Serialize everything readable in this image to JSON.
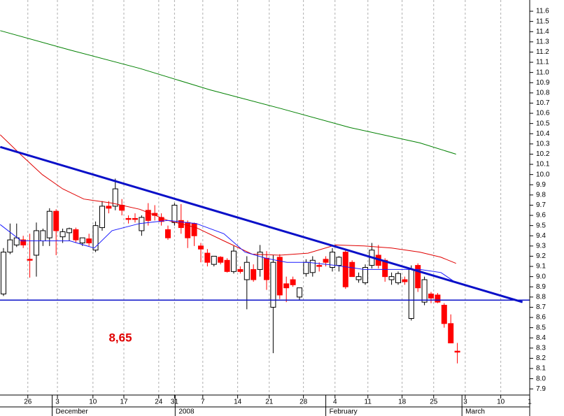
{
  "chart_data": {
    "type": "candlestick",
    "annotation": "8,65",
    "open": [
      8.83,
      9.24,
      9.31,
      9.36,
      9.17,
      9.21,
      9.35,
      9.38,
      9.64,
      9.39,
      9.43,
      9.46,
      9.33,
      9.37,
      9.26,
      9.48,
      9.69,
      9.69,
      9.7,
      9.57,
      9.57,
      9.45,
      9.65,
      9.62,
      9.58,
      9.46,
      9.53,
      9.55,
      9.53,
      9.52,
      9.3,
      9.23,
      9.12,
      9.19,
      9.16,
      9.05,
      9.07,
      8.97,
      9.07,
      9.07,
      9.18,
      8.7,
      9.19,
      8.93,
      8.97,
      8.8,
      9.03,
      9.04,
      9.11,
      9.17,
      9.09,
      9.11,
      9.24,
      9.14,
      8.97,
      8.94,
      9.11,
      9.21,
      9.16,
      8.97,
      8.94,
      8.97,
      8.59,
      9.11,
      8.75,
      8.83,
      8.82,
      8.72,
      8.54,
      8.27
    ],
    "high": [
      9.28,
      9.52,
      9.52,
      9.4,
      9.42,
      9.53,
      9.47,
      9.67,
      9.66,
      9.47,
      9.48,
      9.48,
      9.38,
      9.42,
      9.54,
      9.74,
      9.74,
      9.96,
      9.76,
      9.6,
      9.62,
      9.6,
      9.72,
      9.7,
      9.62,
      9.5,
      9.72,
      9.71,
      9.55,
      9.53,
      9.33,
      9.27,
      9.2,
      9.2,
      9.18,
      9.3,
      9.1,
      9.2,
      9.12,
      9.31,
      9.25,
      9.21,
      9.22,
      9.0,
      9.0,
      8.88,
      9.17,
      9.2,
      9.14,
      9.2,
      9.28,
      9.2,
      9.27,
      9.16,
      9.04,
      9.12,
      9.33,
      9.31,
      9.18,
      9.04,
      9.05,
      9.0,
      9.11,
      9.13,
      9.0,
      8.85,
      8.84,
      8.74,
      8.63,
      8.35
    ],
    "low": [
      8.81,
      9.22,
      9.29,
      9.28,
      8.99,
      9.0,
      9.3,
      9.3,
      9.21,
      9.33,
      9.35,
      9.33,
      9.3,
      9.3,
      9.24,
      9.45,
      9.62,
      9.65,
      9.6,
      9.52,
      9.53,
      9.4,
      9.5,
      9.55,
      9.5,
      9.36,
      9.5,
      9.42,
      9.28,
      9.3,
      9.14,
      9.1,
      9.1,
      9.12,
      9.04,
      9.03,
      9.03,
      8.68,
      8.95,
      9.0,
      8.87,
      8.25,
      8.78,
      8.75,
      8.9,
      8.77,
      9.0,
      9.0,
      9.05,
      9.1,
      9.05,
      9.05,
      8.88,
      9.0,
      8.94,
      8.92,
      9.08,
      9.08,
      8.95,
      8.92,
      8.92,
      8.92,
      8.57,
      8.85,
      8.72,
      8.74,
      8.74,
      8.5,
      8.35,
      8.15
    ],
    "close": [
      9.24,
      9.36,
      9.38,
      9.31,
      9.16,
      9.45,
      9.45,
      9.64,
      9.45,
      9.44,
      9.47,
      9.36,
      9.38,
      9.33,
      9.5,
      9.69,
      9.67,
      9.86,
      9.65,
      9.56,
      9.56,
      9.58,
      9.55,
      9.6,
      9.54,
      9.38,
      9.7,
      9.48,
      9.38,
      9.4,
      9.27,
      9.14,
      9.2,
      9.14,
      9.05,
      9.25,
      9.05,
      9.14,
      8.97,
      9.24,
      8.97,
      9.14,
      8.82,
      8.89,
      8.92,
      8.89,
      9.14,
      9.16,
      9.1,
      9.14,
      9.24,
      9.19,
      8.9,
      9.0,
      9.0,
      9.09,
      9.26,
      9.11,
      9.0,
      9.0,
      9.03,
      8.95,
      9.07,
      8.89,
      8.97,
      8.79,
      8.75,
      8.54,
      8.35,
      8.26
    ],
    "up_color": "#ffffff",
    "down_color": "#ff0000",
    "lines": [
      {
        "color": "#008000",
        "width": 1,
        "x": [
          -0.5,
          10.1,
          20.7,
          31.4,
          42,
          52.7,
          63.3,
          68.8
        ],
        "values": [
          11.41,
          11.22,
          11.04,
          10.83,
          10.65,
          10.46,
          10.31,
          10.2
        ]
      },
      {
        "color": "#e00000",
        "width": 1,
        "x": [
          -0.5,
          2.7,
          5.9,
          9,
          12.2,
          16.5,
          20.7,
          25,
          29.3,
          33.5,
          37.8,
          42,
          46.3,
          50.5,
          54.8,
          59,
          63.3,
          66.5,
          68.8
        ],
        "values": [
          10.39,
          10.19,
          10.0,
          9.86,
          9.76,
          9.72,
          9.66,
          9.55,
          9.48,
          9.35,
          9.22,
          9.21,
          9.23,
          9.31,
          9.3,
          9.28,
          9.24,
          9.19,
          9.13
        ]
      },
      {
        "color": "#1a1aff",
        "width": 1,
        "x": [
          -0.5,
          2.7,
          5.9,
          10.1,
          13.8,
          16.5,
          20.7,
          25,
          29.3,
          33.5,
          36.7,
          39.9,
          43.1,
          46.3,
          50.5,
          54.8,
          59,
          63.3,
          66.5,
          68.8
        ],
        "values": [
          9.51,
          9.35,
          9.35,
          9.35,
          9.28,
          9.45,
          9.52,
          9.55,
          9.52,
          9.42,
          9.24,
          9.18,
          9.14,
          9.14,
          9.11,
          9.07,
          9.07,
          9.07,
          9.04,
          8.94
        ]
      },
      {
        "color": "#0a10c8",
        "width": 3,
        "x": [
          -0.5,
          78.9
        ],
        "values": [
          10.27,
          8.75
        ]
      },
      {
        "color": "#0a10c8",
        "width": 1.5,
        "x": [
          -0.53,
          80
        ],
        "values": [
          8.77,
          8.77
        ]
      }
    ],
    "xlim": [
      -0.53,
      80
    ],
    "ylim": [
      7.84,
      11.71
    ],
    "xticks": [
      {
        "value": 3.7,
        "label": "26"
      },
      {
        "value": 8.2,
        "label": "3"
      },
      {
        "value": 13.6,
        "label": "10"
      },
      {
        "value": 18.3,
        "label": "17"
      },
      {
        "value": 23.6,
        "label": "24"
      },
      {
        "value": 26,
        "label": "31"
      },
      {
        "value": 30.3,
        "label": "7"
      },
      {
        "value": 35.6,
        "label": "14"
      },
      {
        "value": 40.4,
        "label": "21"
      },
      {
        "value": 45.6,
        "label": "28"
      },
      {
        "value": 50.4,
        "label": "4"
      },
      {
        "value": 55.4,
        "label": "11"
      },
      {
        "value": 60.6,
        "label": "18"
      },
      {
        "value": 65.4,
        "label": "25"
      },
      {
        "value": 70.2,
        "label": "3"
      },
      {
        "value": 75.6,
        "label": "10"
      },
      {
        "value": 80,
        "label": "1"
      }
    ],
    "month_ticks": [
      {
        "value": 7.4,
        "label": "December"
      },
      {
        "value": 26.1,
        "label": "2008"
      },
      {
        "value": 49,
        "label": "February"
      },
      {
        "value": 69.7,
        "label": "March"
      }
    ],
    "yticks": [
      7.9,
      {
        "value": 8.0,
        "label": "8.0"
      },
      8.1,
      8.2,
      8.3,
      8.4,
      8.5,
      8.6,
      8.7,
      8.8,
      8.9,
      {
        "value": 9.0,
        "label": "9.0"
      },
      9.1,
      9.2,
      9.3,
      9.4,
      9.5,
      9.6,
      9.7,
      9.8,
      9.9,
      {
        "value": 10.0,
        "label": "10.0"
      },
      10.1,
      10.2,
      10.3,
      10.4,
      10.5,
      10.6,
      10.7,
      10.8,
      10.9,
      {
        "value": 11.0,
        "label": "11.0"
      },
      11.1,
      11.2,
      11.3,
      11.4,
      11.5,
      11.6
    ]
  }
}
